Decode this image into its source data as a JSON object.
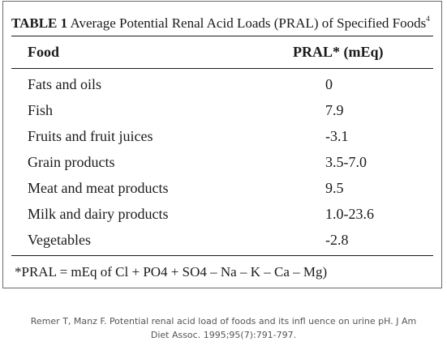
{
  "table": {
    "label": "TABLE 1",
    "title": "Average Potential Renal Acid Loads (PRAL) of Specified Foods",
    "title_superscript": "4",
    "headers": {
      "food": "Food",
      "pral": "PRAL* (mEq)"
    },
    "rows": [
      {
        "food": "Fats and oils",
        "pral": "0"
      },
      {
        "food": "Fish",
        "pral": "7.9"
      },
      {
        "food": "Fruits and fruit juices",
        "pral": "-3.1"
      },
      {
        "food": "Grain products",
        "pral": "3.5-7.0"
      },
      {
        "food": "Meat and meat products",
        "pral": "9.5"
      },
      {
        "food": "Milk and dairy products",
        "pral": "1.0-23.6"
      },
      {
        "food": "Vegetables",
        "pral": "-2.8"
      }
    ],
    "footnote": "*PRAL = mEq of Cl + PO4 + SO4 – Na – K – Ca – Mg)"
  },
  "citation": {
    "line1": "Remer T, Manz F. Potential renal acid load of foods and its infl uence on urine pH. J Am",
    "line2": "Diet Assoc. 1995;95(7):791-797."
  }
}
